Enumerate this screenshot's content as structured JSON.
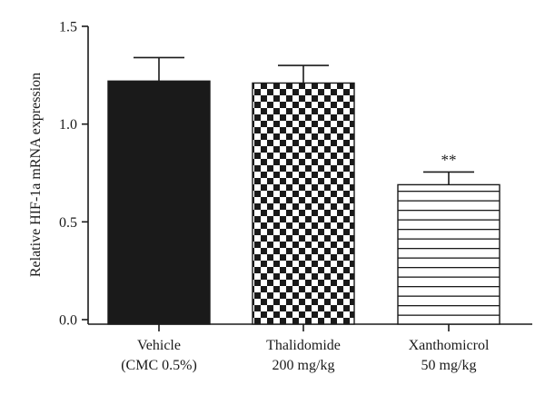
{
  "chart_data": {
    "type": "bar",
    "categories": [
      [
        "Vehicle",
        "(CMC 0.5%)"
      ],
      [
        "Thalidomide",
        "200 mg/kg"
      ],
      [
        "Xanthomicrol",
        "50 mg/kg"
      ]
    ],
    "values": [
      1.22,
      1.21,
      0.69
    ],
    "errors": [
      0.12,
      0.09,
      0.065
    ],
    "fill_patterns": [
      "solid",
      "checkerboard",
      "horizontal-stripes"
    ],
    "annotations": [
      "",
      "",
      "**"
    ],
    "ylabel": "Relative HIF-1a mRNA expression",
    "ylim": [
      0,
      1.5
    ],
    "yticks": [
      0.0,
      0.5,
      1.0,
      1.5
    ],
    "ytick_labels": [
      "0.0",
      "0.5",
      "1.0",
      "1.5"
    ],
    "grid": false,
    "colors": {
      "bar_fill": "#1a1a1a",
      "axis": "#1a1a1a",
      "background": "#ffffff"
    }
  }
}
